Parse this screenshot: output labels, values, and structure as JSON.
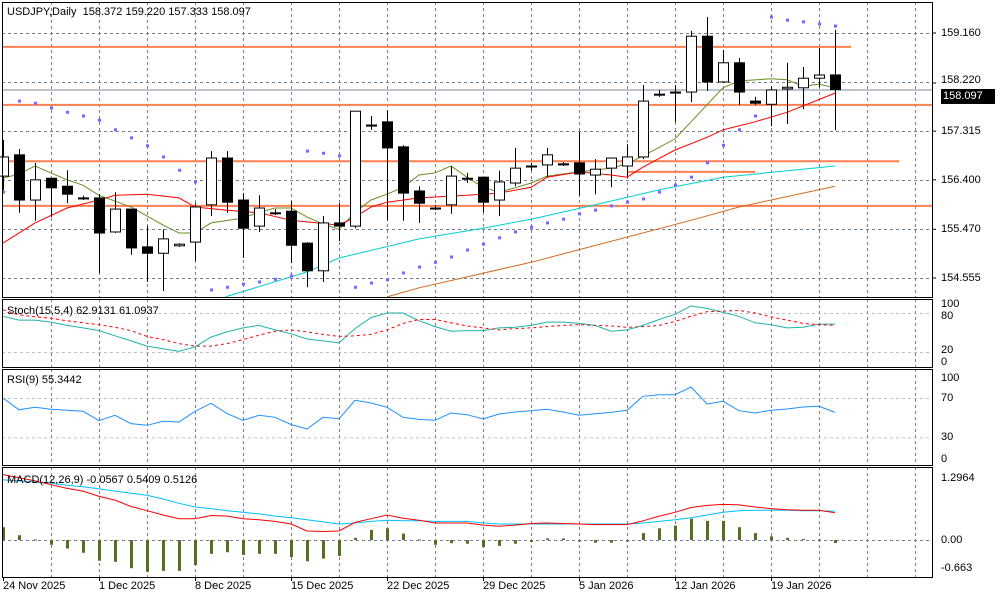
{
  "header": {
    "symbol": "USDJPY",
    "timeframe": "Daily",
    "open": "158.372",
    "high": "159.220",
    "low": "157.333",
    "close": "158.097"
  },
  "price_axis": {
    "labels": [
      "159.160",
      "158.220",
      "157.315",
      "156.400",
      "155.470",
      "154.555"
    ],
    "current_price": "158.097"
  },
  "stoch": {
    "title": "Stoch(15,5,4)",
    "main_value": "62.9131",
    "signal_value": "61.0937",
    "axis_labels": [
      "100",
      "80",
      "20",
      "0"
    ]
  },
  "rsi": {
    "title": "RSI(9)",
    "value": "55.3442",
    "axis_labels": [
      "100",
      "70",
      "30",
      "0"
    ]
  },
  "macd": {
    "title": "MACD(12,26,9)",
    "values": [
      "-0.0567",
      "0.5409",
      "0.5126"
    ],
    "axis_labels": [
      "1.2964",
      "0.00",
      "-0.663"
    ]
  },
  "dates": [
    {
      "label": "24 Nov 2025",
      "index": 0
    },
    {
      "label": "1 Dec 2025",
      "index": 6
    },
    {
      "label": "8 Dec 2025",
      "index": 12
    },
    {
      "label": "15 Dec 2025",
      "index": 18
    },
    {
      "label": "22 Dec 2025",
      "index": 24
    },
    {
      "label": "29 Dec 2025",
      "index": 30
    },
    {
      "label": "5 Jan 2026",
      "index": 36
    },
    {
      "label": "12 Jan 2026",
      "index": 42
    },
    {
      "label": "19 Jan 2026",
      "index": 48
    }
  ],
  "colors": {
    "bull": "#ffffff",
    "bear": "#000000",
    "level": "#ff7f50",
    "ma_fast": "#6b8e23",
    "ma_mid": "#ff0000",
    "ma_slow": "#00ced1",
    "ma_long": "#d2691e",
    "sar": "#7b68ee",
    "stoch_main": "#20b2aa",
    "stoch_signal": "#ff0000",
    "rsi": "#1e90ff",
    "macd_hist": "#556b2f",
    "macd_line": "#ff0000",
    "macd_signal": "#00bfff",
    "grid": "#708090"
  },
  "chart_data": {
    "type": "candlestick",
    "title": "USDJPY,Daily",
    "ylim": [
      154.2,
      159.6
    ],
    "candles_ohlc": [
      [
        156.47,
        157.15,
        156.21,
        156.83
      ],
      [
        156.87,
        156.98,
        155.78,
        156.02
      ],
      [
        156.02,
        156.72,
        155.63,
        156.4
      ],
      [
        156.43,
        156.43,
        155.7,
        156.25
      ],
      [
        156.28,
        156.58,
        155.96,
        156.13
      ],
      [
        156.06,
        156.1,
        156.02,
        156.06
      ],
      [
        156.06,
        156.13,
        154.65,
        155.4
      ],
      [
        155.42,
        156.17,
        155.4,
        155.85
      ],
      [
        155.85,
        155.85,
        154.99,
        155.12
      ],
      [
        155.14,
        155.53,
        154.48,
        155.02
      ],
      [
        155.02,
        155.47,
        154.31,
        155.29
      ],
      [
        155.16,
        155.21,
        155.14,
        155.19
      ],
      [
        155.23,
        155.96,
        154.87,
        155.89
      ],
      [
        155.93,
        156.94,
        155.72,
        156.81
      ],
      [
        156.81,
        156.94,
        155.78,
        155.98
      ],
      [
        156.02,
        156.15,
        154.93,
        155.49
      ],
      [
        155.53,
        156.11,
        155.42,
        155.87
      ],
      [
        155.78,
        155.85,
        155.74,
        155.78
      ],
      [
        155.81,
        156.0,
        154.84,
        155.17
      ],
      [
        155.21,
        155.23,
        154.38,
        154.69
      ],
      [
        154.69,
        155.72,
        154.48,
        155.59
      ],
      [
        155.59,
        155.96,
        155.25,
        155.53
      ],
      [
        155.53,
        157.69,
        155.49,
        157.69
      ],
      [
        157.43,
        157.6,
        157.34,
        157.43
      ],
      [
        157.49,
        157.71,
        155.63,
        157.0
      ],
      [
        157.02,
        157.05,
        155.63,
        156.15
      ],
      [
        156.19,
        156.28,
        155.59,
        155.96
      ],
      [
        155.87,
        155.93,
        155.83,
        155.87
      ],
      [
        155.93,
        156.66,
        155.76,
        156.47
      ],
      [
        156.43,
        156.53,
        156.34,
        156.43
      ],
      [
        156.45,
        156.45,
        155.79,
        155.98
      ],
      [
        156.02,
        156.57,
        155.72,
        156.36
      ],
      [
        156.34,
        157.0,
        156.28,
        156.62
      ],
      [
        156.66,
        156.72,
        156.58,
        156.66
      ],
      [
        156.68,
        157.0,
        156.45,
        156.87
      ],
      [
        156.7,
        156.73,
        156.66,
        156.7
      ],
      [
        156.72,
        157.3,
        156.1,
        156.51
      ],
      [
        156.49,
        156.79,
        156.13,
        156.6
      ],
      [
        156.62,
        156.81,
        156.26,
        156.81
      ],
      [
        156.66,
        157.07,
        156.45,
        156.83
      ],
      [
        156.83,
        158.18,
        156.79,
        157.88
      ],
      [
        158.01,
        158.09,
        157.96,
        158.01
      ],
      [
        158.05,
        158.18,
        157.49,
        158.05
      ],
      [
        158.05,
        159.2,
        157.86,
        159.1
      ],
      [
        159.1,
        159.46,
        158.07,
        158.24
      ],
      [
        158.24,
        158.84,
        158.22,
        158.6
      ],
      [
        158.6,
        158.69,
        157.81,
        158.05
      ],
      [
        157.88,
        157.96,
        157.81,
        157.84
      ],
      [
        157.82,
        158.16,
        157.41,
        158.09
      ],
      [
        158.11,
        158.6,
        157.45,
        158.14
      ],
      [
        158.13,
        158.52,
        157.73,
        158.31
      ],
      [
        158.31,
        158.88,
        158.14,
        158.37
      ],
      [
        158.372,
        159.22,
        157.333,
        158.097
      ]
    ],
    "levels": [
      {
        "price": 158.9,
        "start_index": 0,
        "end_index": 53
      },
      {
        "price": 157.81,
        "start_index": 0,
        "end_index": null
      },
      {
        "price": 156.75,
        "start_index": 0,
        "end_index": 56
      },
      {
        "price": 156.55,
        "start_index": 39,
        "end_index": 47
      },
      {
        "price": 155.91,
        "start_index": 0,
        "end_index": null
      }
    ],
    "moving_averages": [
      {
        "name": "ma_fast",
        "points": [
          [
            0,
            156.43
          ],
          [
            1,
            156.51
          ],
          [
            2,
            156.66
          ],
          [
            4,
            156.4
          ],
          [
            5,
            156.3
          ],
          [
            6,
            156.11
          ],
          [
            8,
            155.89
          ],
          [
            10,
            155.55
          ],
          [
            11,
            155.4
          ],
          [
            12,
            155.4
          ],
          [
            13,
            155.59
          ],
          [
            15,
            155.68
          ],
          [
            16,
            155.79
          ],
          [
            17,
            155.87
          ],
          [
            18,
            155.87
          ],
          [
            19,
            155.7
          ],
          [
            20,
            155.57
          ],
          [
            21,
            155.47
          ],
          [
            22,
            155.79
          ],
          [
            23,
            156.02
          ],
          [
            24,
            156.13
          ],
          [
            25,
            156.26
          ],
          [
            26,
            156.49
          ],
          [
            27,
            156.53
          ],
          [
            28,
            156.66
          ],
          [
            29,
            156.45
          ],
          [
            30,
            156.26
          ],
          [
            31,
            156.17
          ],
          [
            32,
            156.25
          ],
          [
            33,
            156.34
          ],
          [
            34,
            156.47
          ],
          [
            36,
            156.55
          ],
          [
            38,
            156.62
          ],
          [
            39,
            156.7
          ],
          [
            40,
            156.85
          ],
          [
            42,
            157.17
          ],
          [
            43,
            157.49
          ],
          [
            45,
            158.13
          ],
          [
            46,
            158.26
          ],
          [
            48,
            158.3
          ],
          [
            49,
            158.28
          ],
          [
            50,
            158.16
          ],
          [
            51,
            158.2
          ],
          [
            52,
            158.13
          ]
        ]
      },
      {
        "name": "ma_mid",
        "points": [
          [
            0,
            155.21
          ],
          [
            2,
            155.59
          ],
          [
            4,
            155.87
          ],
          [
            6,
            156.02
          ],
          [
            7,
            156.11
          ],
          [
            9,
            156.13
          ],
          [
            11,
            156.06
          ],
          [
            12,
            155.89
          ],
          [
            14,
            155.83
          ],
          [
            16,
            155.78
          ],
          [
            18,
            155.64
          ],
          [
            21,
            155.55
          ],
          [
            22,
            155.7
          ],
          [
            23,
            155.89
          ],
          [
            24,
            155.98
          ],
          [
            26,
            156.06
          ],
          [
            29,
            156.11
          ],
          [
            31,
            156.15
          ],
          [
            33,
            156.26
          ],
          [
            34,
            156.45
          ],
          [
            36,
            156.55
          ],
          [
            38,
            156.49
          ],
          [
            39,
            156.45
          ],
          [
            40,
            156.64
          ],
          [
            42,
            156.96
          ],
          [
            44,
            157.2
          ],
          [
            45,
            157.34
          ],
          [
            47,
            157.49
          ],
          [
            49,
            157.67
          ],
          [
            52,
            158.03
          ]
        ]
      },
      {
        "name": "ma_slow",
        "points": [
          [
            13.9,
            154.2
          ],
          [
            19,
            154.67
          ],
          [
            21,
            154.93
          ],
          [
            26,
            155.29
          ],
          [
            30,
            155.49
          ],
          [
            33,
            155.66
          ],
          [
            37,
            155.93
          ],
          [
            41,
            156.21
          ],
          [
            45,
            156.45
          ],
          [
            52,
            156.66
          ]
        ]
      },
      {
        "name": "ma_long",
        "points": [
          [
            24,
            154.2
          ],
          [
            26,
            154.37
          ],
          [
            33,
            154.85
          ],
          [
            43,
            155.64
          ],
          [
            46,
            155.89
          ],
          [
            52,
            156.28
          ]
        ]
      }
    ],
    "parabolic_sar": [
      156.17,
      157.88,
      157.84,
      157.75,
      157.67,
      157.6,
      157.52,
      157.34,
      157.19,
      157.04,
      156.83,
      156.58,
      156.36,
      154.33,
      154.38,
      154.44,
      154.48,
      154.53,
      154.59,
      156.94,
      156.9,
      156.85,
      154.38,
      154.46,
      154.52,
      154.65,
      154.76,
      154.85,
      154.95,
      155.08,
      155.19,
      155.31,
      155.42,
      155.51,
      155.59,
      155.66,
      155.76,
      155.83,
      155.91,
      155.98,
      156.04,
      156.17,
      156.3,
      156.45,
      156.72,
      157.05,
      157.34,
      157.6,
      159.46,
      159.4,
      159.37,
      159.33,
      159.29
    ],
    "stoch_main": [
      75,
      69,
      69,
      66,
      61,
      57,
      53,
      45,
      37,
      29,
      25,
      21,
      28,
      43,
      51,
      57,
      61,
      54,
      48,
      40,
      37,
      34,
      56,
      73,
      80,
      80,
      68,
      59,
      52,
      53,
      53,
      57,
      58,
      61,
      66,
      66,
      64,
      61,
      52,
      54,
      61,
      70,
      78,
      91,
      87,
      81,
      75,
      65,
      62,
      57,
      58,
      63,
      62.91
    ],
    "stoch_signal": [
      85,
      77,
      74,
      72,
      68,
      65,
      62,
      58,
      53,
      44,
      39,
      33,
      29,
      29,
      33,
      39,
      46,
      52,
      54,
      51,
      47,
      44,
      45,
      47,
      54,
      64,
      70,
      70,
      65,
      60,
      57,
      54,
      56,
      57,
      59,
      61,
      62,
      61,
      60,
      58,
      59,
      61,
      67,
      75,
      82,
      83,
      84,
      80,
      74,
      69,
      64,
      62,
      61.09
    ],
    "stoch_levels": [
      20,
      80
    ],
    "rsi": [
      70,
      58,
      60.5,
      58.5,
      57.5,
      56.5,
      47,
      52.4,
      44,
      42.2,
      46.3,
      45.6,
      56.5,
      64.6,
      54.1,
      47.3,
      52.4,
      50.4,
      43,
      38.5,
      50.4,
      48.9,
      67.7,
      64.9,
      60.5,
      50.4,
      48.2,
      47.3,
      54.7,
      53,
      48.6,
      53.7,
      55.8,
      57.1,
      58.5,
      55.8,
      52.4,
      54,
      55.4,
      57.5,
      71.7,
      73.4,
      73.4,
      81.2,
      63.9,
      66.6,
      57.1,
      54.7,
      57.5,
      58.8,
      60.8,
      61.6,
      55.34
    ],
    "rsi_levels": [
      30,
      70
    ],
    "macd_hist": [
      0.24,
      0.09,
      0.01,
      -0.09,
      -0.16,
      -0.24,
      -0.39,
      -0.41,
      -0.53,
      -0.6,
      -0.58,
      -0.58,
      -0.47,
      -0.26,
      -0.23,
      -0.28,
      -0.26,
      -0.26,
      -0.32,
      -0.4,
      -0.35,
      -0.3,
      0.04,
      0.19,
      0.22,
      0.12,
      0.01,
      -0.09,
      -0.06,
      -0.07,
      -0.13,
      -0.11,
      -0.07,
      -0.04,
      0.03,
      0.03,
      -0.03,
      -0.05,
      -0.05,
      -0.03,
      0.13,
      0.22,
      0.27,
      0.4,
      0.36,
      0.36,
      0.24,
      0.13,
      0.07,
      0.04,
      0.02,
      0.01,
      -0.0567
    ],
    "macd_line": [
      1.23,
      1.17,
      1.11,
      1.04,
      0.97,
      0.92,
      0.82,
      0.75,
      0.63,
      0.55,
      0.47,
      0.4,
      0.4,
      0.46,
      0.45,
      0.4,
      0.38,
      0.35,
      0.3,
      0.17,
      0.16,
      0.17,
      0.33,
      0.4,
      0.47,
      0.41,
      0.37,
      0.32,
      0.32,
      0.32,
      0.28,
      0.26,
      0.28,
      0.31,
      0.32,
      0.31,
      0.3,
      0.29,
      0.29,
      0.29,
      0.36,
      0.45,
      0.52,
      0.61,
      0.65,
      0.67,
      0.66,
      0.62,
      0.59,
      0.57,
      0.56,
      0.56,
      0.5126
    ],
    "macd_signal": [
      1.13,
      1.11,
      1.09,
      1.07,
      1.03,
      1.0,
      0.96,
      0.92,
      0.88,
      0.84,
      0.77,
      0.69,
      0.62,
      0.59,
      0.55,
      0.52,
      0.49,
      0.45,
      0.42,
      0.38,
      0.34,
      0.3,
      0.32,
      0.35,
      0.37,
      0.36,
      0.36,
      0.35,
      0.35,
      0.35,
      0.32,
      0.3,
      0.3,
      0.3,
      0.3,
      0.3,
      0.3,
      0.3,
      0.3,
      0.3,
      0.32,
      0.35,
      0.38,
      0.42,
      0.47,
      0.52,
      0.55,
      0.56,
      0.56,
      0.56,
      0.55,
      0.55,
      0.5409
    ],
    "macd_ylim": [
      -0.663,
      1.2964
    ],
    "grid": true
  }
}
